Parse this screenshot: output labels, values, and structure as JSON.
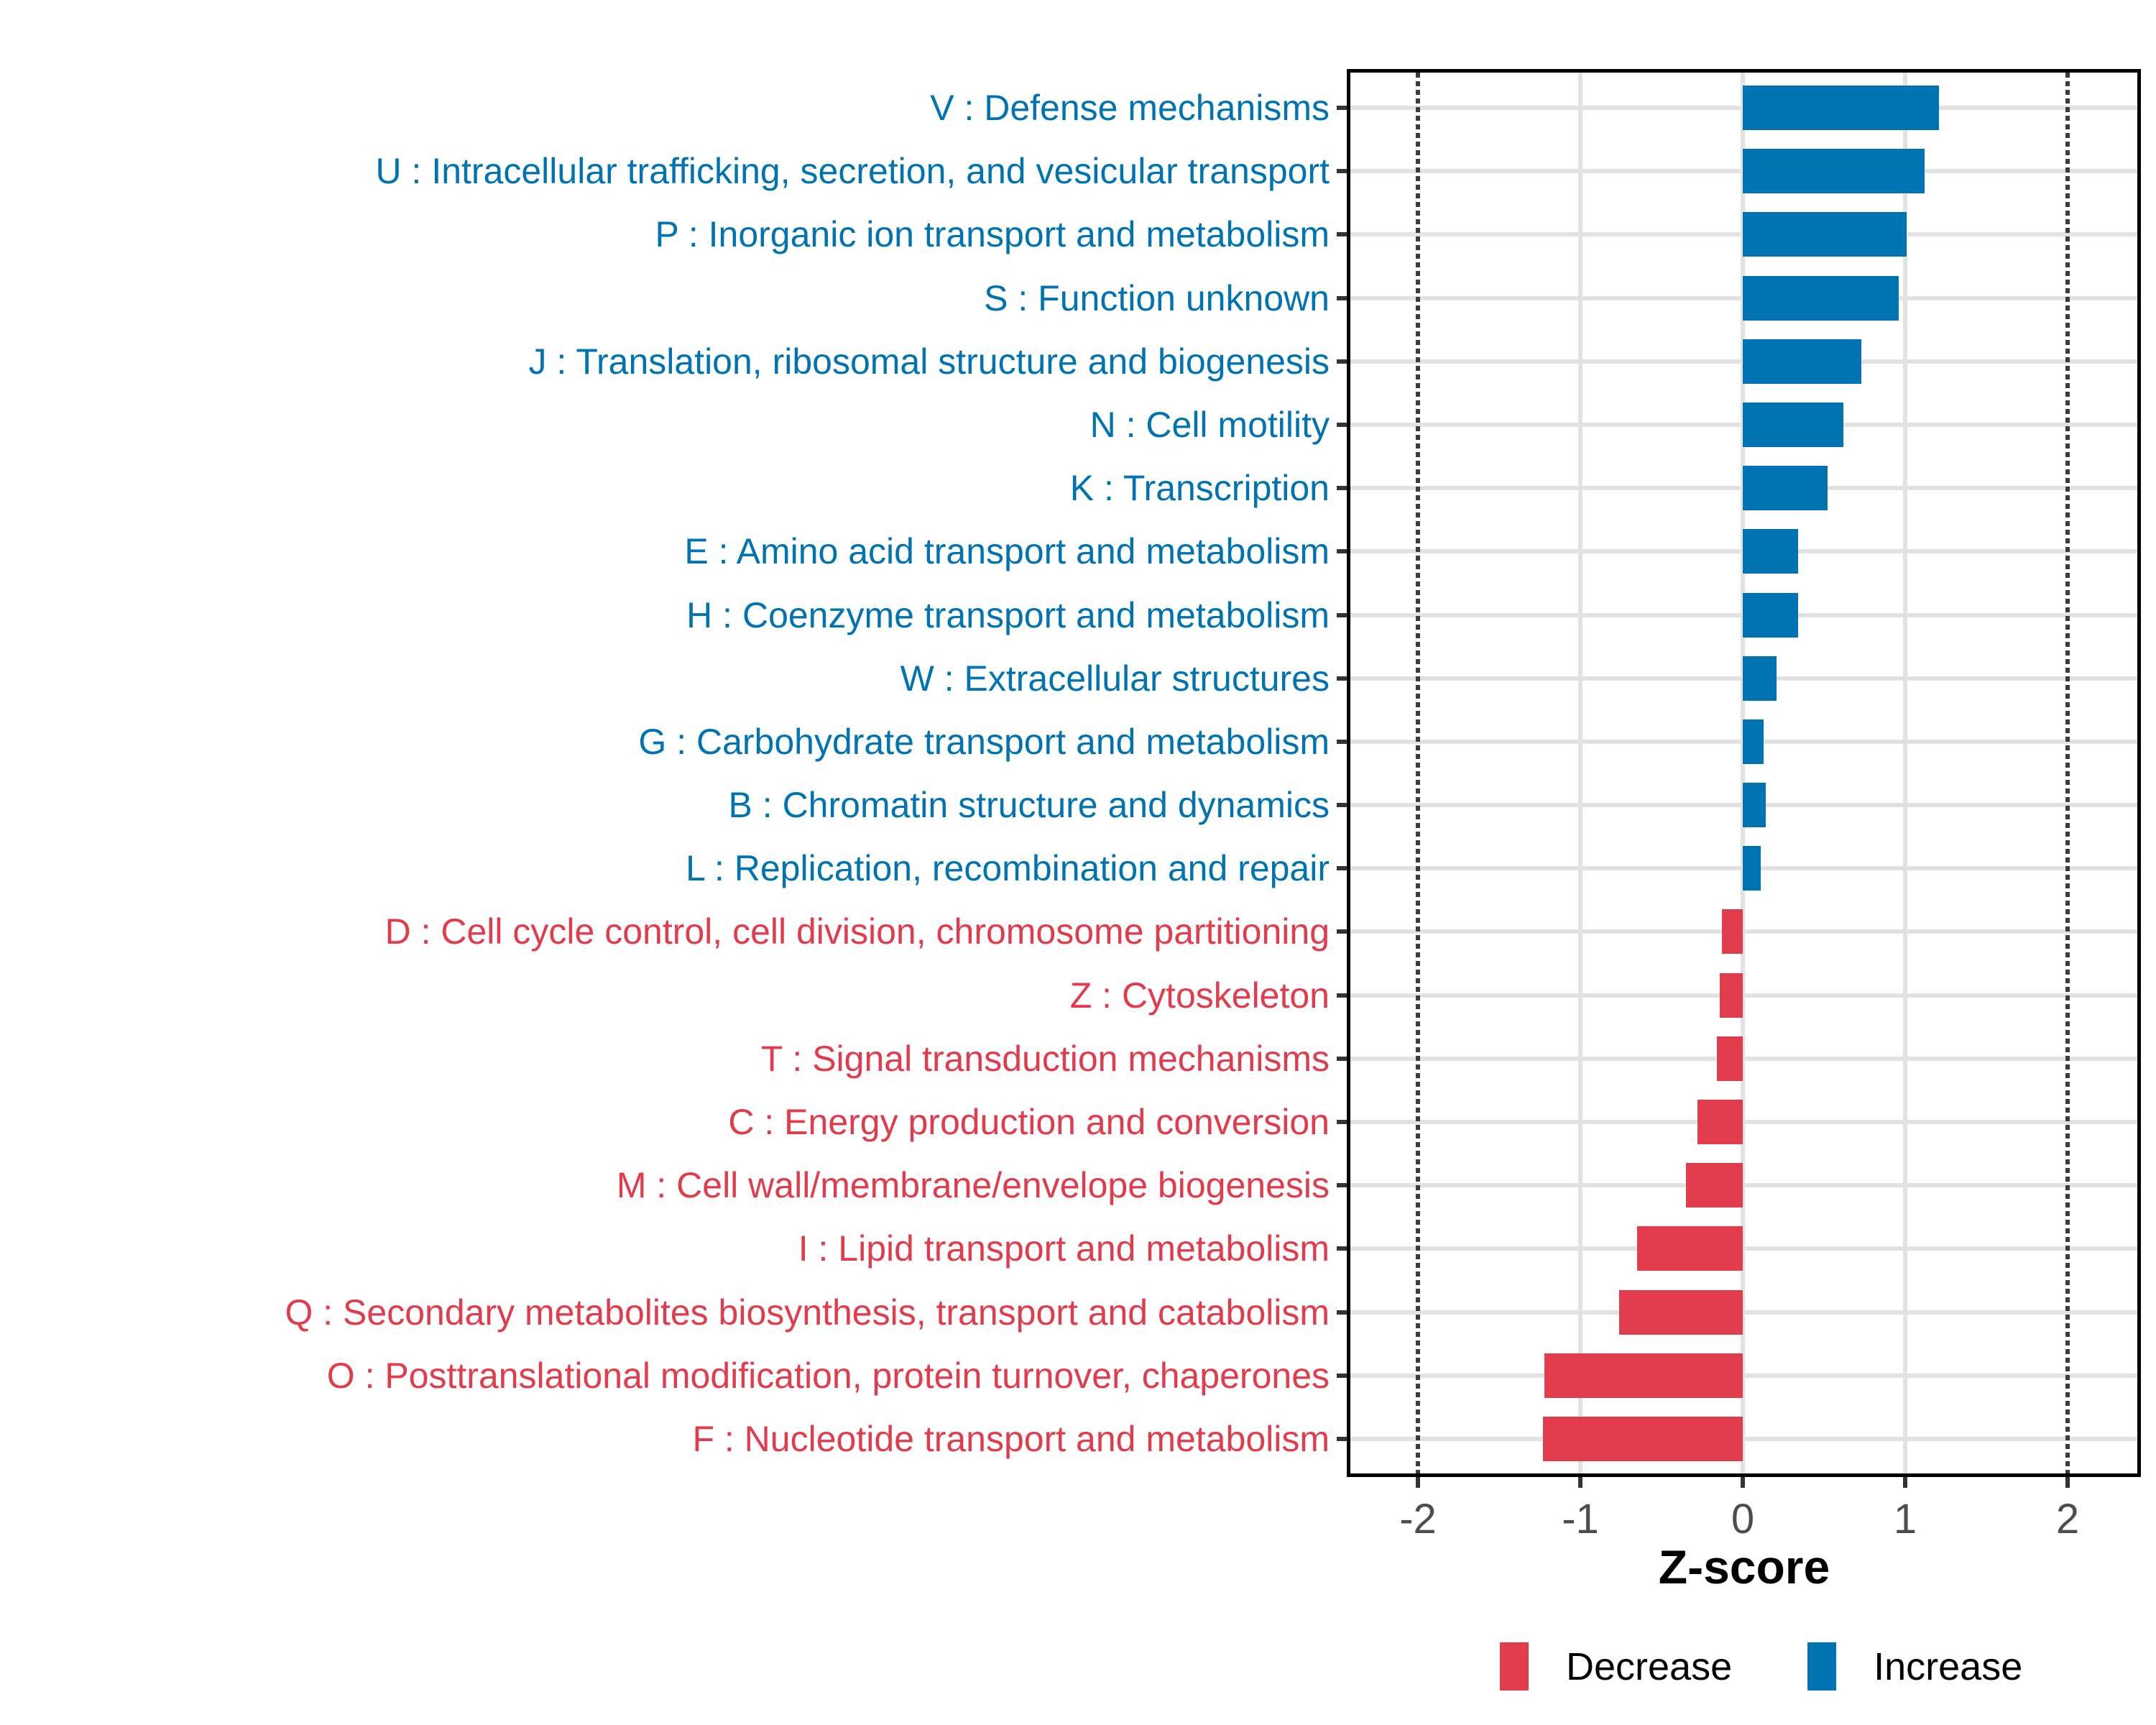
{
  "chart_data": {
    "type": "bar",
    "orientation": "horizontal",
    "xlabel": "Z-score",
    "x_ticks": [
      -2,
      -1,
      0,
      1,
      2
    ],
    "x_range": [
      -2.43,
      2.44
    ],
    "grid_x_solid": [
      -1,
      0,
      1
    ],
    "reference_lines_dotted": [
      -2,
      2
    ],
    "legend_position": "bottom",
    "legend": {
      "decrease_label": "Decrease",
      "increase_label": "Increase"
    },
    "colors": {
      "increase": "#0073B2",
      "decrease": "#E23B4C",
      "grid": "#e2e2e2",
      "axis_text": "#4d4d4d",
      "panel_border": "#000000"
    },
    "categories": [
      {
        "label": "V : Defense mechanisms",
        "value": 1.21,
        "direction": "increase"
      },
      {
        "label": "U : Intracellular trafficking, secretion, and vesicular transport",
        "value": 1.12,
        "direction": "increase"
      },
      {
        "label": "P : Inorganic ion transport and metabolism",
        "value": 1.01,
        "direction": "increase"
      },
      {
        "label": "S : Function unknown",
        "value": 0.96,
        "direction": "increase"
      },
      {
        "label": "J : Translation, ribosomal structure and biogenesis",
        "value": 0.73,
        "direction": "increase"
      },
      {
        "label": "N : Cell motility",
        "value": 0.62,
        "direction": "increase"
      },
      {
        "label": "K : Transcription",
        "value": 0.52,
        "direction": "increase"
      },
      {
        "label": "E : Amino acid transport and metabolism",
        "value": 0.34,
        "direction": "increase"
      },
      {
        "label": "H : Coenzyme transport and metabolism",
        "value": 0.34,
        "direction": "increase"
      },
      {
        "label": "W : Extracellular structures",
        "value": 0.21,
        "direction": "increase"
      },
      {
        "label": "G : Carbohydrate transport and metabolism",
        "value": 0.13,
        "direction": "increase"
      },
      {
        "label": "B : Chromatin structure and dynamics",
        "value": 0.14,
        "direction": "increase"
      },
      {
        "label": "L : Replication, recombination and repair",
        "value": 0.11,
        "direction": "increase"
      },
      {
        "label": "D : Cell cycle control, cell division, chromosome partitioning",
        "value": -0.13,
        "direction": "decrease"
      },
      {
        "label": "Z : Cytoskeleton",
        "value": -0.14,
        "direction": "decrease"
      },
      {
        "label": "T : Signal transduction mechanisms",
        "value": -0.16,
        "direction": "decrease"
      },
      {
        "label": "C : Energy production and conversion",
        "value": -0.28,
        "direction": "decrease"
      },
      {
        "label": "M : Cell wall/membrane/envelope biogenesis",
        "value": -0.35,
        "direction": "decrease"
      },
      {
        "label": "I : Lipid transport and metabolism",
        "value": -0.65,
        "direction": "decrease"
      },
      {
        "label": "Q : Secondary metabolites biosynthesis, transport and catabolism",
        "value": -0.76,
        "direction": "decrease"
      },
      {
        "label": "O : Posttranslational modification, protein turnover, chaperones",
        "value": -1.22,
        "direction": "decrease"
      },
      {
        "label": "F : Nucleotide transport and metabolism",
        "value": -1.23,
        "direction": "decrease"
      }
    ]
  }
}
